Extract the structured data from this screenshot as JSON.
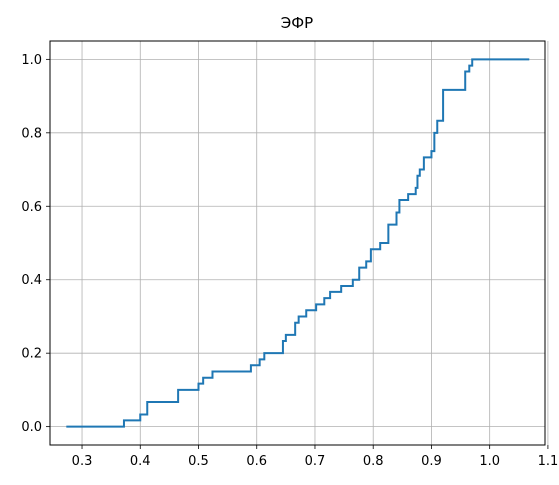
{
  "chart_data": {
    "type": "line",
    "title": "ЭФР",
    "xlabel": "",
    "ylabel": "",
    "xlim": [
      0.245,
      1.095
    ],
    "ylim": [
      -0.05,
      1.05
    ],
    "x_ticks": [
      0.3,
      0.4,
      0.5,
      0.6,
      0.7,
      0.8,
      0.9,
      1.0,
      1.1
    ],
    "x_tick_labels": [
      "0.3",
      "0.4",
      "0.5",
      "0.6",
      "0.7",
      "0.8",
      "0.9",
      "1.0",
      "1.1"
    ],
    "y_ticks": [
      0.0,
      0.2,
      0.4,
      0.6,
      0.8,
      1.0
    ],
    "y_tick_labels": [
      "0.0",
      "0.2",
      "0.4",
      "0.6",
      "0.8",
      "1.0"
    ],
    "grid": true,
    "line_color": "#1f77b4",
    "step": "post",
    "series": [
      {
        "x": [
          0.273,
          0.372,
          0.4,
          0.412,
          0.465,
          0.5,
          0.508,
          0.524,
          0.59,
          0.605,
          0.613,
          0.645,
          0.65,
          0.666,
          0.672,
          0.685,
          0.702,
          0.716,
          0.726,
          0.745,
          0.753,
          0.765,
          0.776,
          0.788,
          0.796,
          0.812,
          0.826,
          0.84,
          0.845,
          0.86,
          0.873,
          0.876,
          0.88,
          0.887,
          0.9,
          0.905,
          0.91,
          0.92,
          0.958,
          0.965,
          0.97,
          1.068
        ],
        "y": [
          0.0,
          0.017,
          0.033,
          0.067,
          0.1,
          0.117,
          0.133,
          0.15,
          0.167,
          0.183,
          0.2,
          0.233,
          0.25,
          0.283,
          0.3,
          0.317,
          0.333,
          0.35,
          0.367,
          0.383,
          0.383,
          0.4,
          0.433,
          0.45,
          0.483,
          0.5,
          0.55,
          0.583,
          0.617,
          0.633,
          0.65,
          0.683,
          0.7,
          0.733,
          0.75,
          0.8,
          0.833,
          0.917,
          0.967,
          0.983,
          1.0,
          1.0
        ]
      }
    ]
  }
}
